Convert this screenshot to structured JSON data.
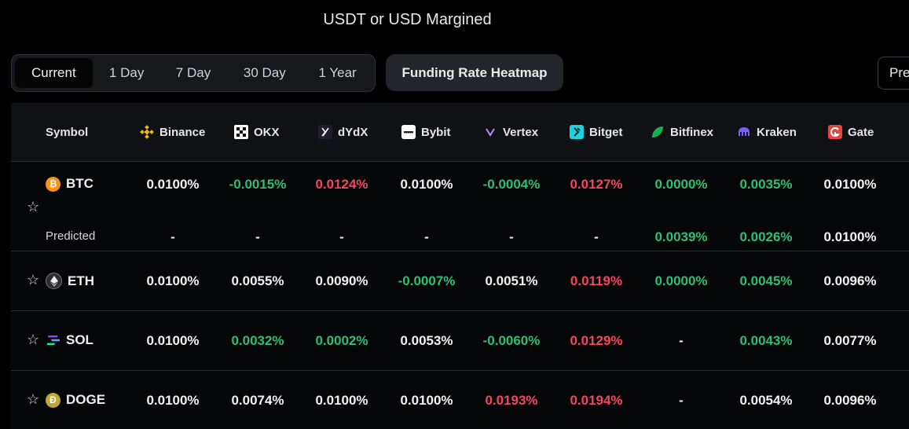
{
  "title": "USDT or USD Margined",
  "tabs": [
    "Current",
    "1 Day",
    "7 Day",
    "30 Day",
    "1 Year"
  ],
  "active_tab": "Current",
  "heatmap_button": "Funding Rate Heatmap",
  "predicted_button": "Pre",
  "columns": {
    "symbol": "Symbol",
    "exchanges": [
      "Binance",
      "OKX",
      "dYdX",
      "Bybit",
      "Vertex",
      "Bitget",
      "Bitfinex",
      "Kraken",
      "Gate"
    ]
  },
  "rows": [
    {
      "symbol": "BTC",
      "values": [
        "0.0100%",
        "-0.0015%",
        "0.0124%",
        "0.0100%",
        "-0.0004%",
        "0.0127%",
        "0.0000%",
        "0.0035%",
        "0.0100%"
      ],
      "colors": [
        "neu",
        "pos",
        "neg",
        "neu",
        "pos",
        "neg",
        "pos",
        "pos",
        "neu"
      ],
      "predicted_label": "Predicted",
      "predicted": [
        "-",
        "-",
        "-",
        "-",
        "-",
        "-",
        "0.0039%",
        "0.0026%",
        "0.0100%"
      ],
      "predicted_colors": [
        "neu",
        "neu",
        "neu",
        "neu",
        "neu",
        "neu",
        "pos",
        "pos",
        "neu"
      ]
    },
    {
      "symbol": "ETH",
      "values": [
        "0.0100%",
        "0.0055%",
        "0.0090%",
        "-0.0007%",
        "0.0051%",
        "0.0119%",
        "0.0000%",
        "0.0045%",
        "0.0096%"
      ],
      "colors": [
        "neu",
        "neu",
        "neu",
        "pos",
        "neu",
        "neg",
        "pos",
        "pos",
        "neu"
      ]
    },
    {
      "symbol": "SOL",
      "values": [
        "0.0100%",
        "0.0032%",
        "0.0002%",
        "0.0053%",
        "-0.0060%",
        "0.0129%",
        "-",
        "0.0043%",
        "0.0077%"
      ],
      "colors": [
        "neu",
        "pos",
        "pos",
        "neu",
        "pos",
        "neg",
        "neu",
        "pos",
        "neu"
      ]
    },
    {
      "symbol": "DOGE",
      "values": [
        "0.0100%",
        "0.0074%",
        "0.0100%",
        "0.0100%",
        "0.0193%",
        "0.0194%",
        "-",
        "0.0054%",
        "0.0096%"
      ],
      "colors": [
        "neu",
        "neu",
        "neu",
        "neu",
        "neg",
        "neg",
        "neu",
        "neu",
        "neu"
      ]
    }
  ],
  "colors": {
    "positive": "#2fbf71",
    "negative": "#f6465d",
    "neutral": "#f2f2f2"
  },
  "icons": {
    "exchanges": [
      "binance-icon",
      "okx-icon",
      "dydx-icon",
      "bybit-icon",
      "vertex-icon",
      "bitget-icon",
      "bitfinex-icon",
      "kraken-icon",
      "gate-icon"
    ],
    "coins": [
      "btc-icon",
      "eth-icon",
      "sol-icon",
      "doge-icon"
    ],
    "star": "star-icon"
  }
}
